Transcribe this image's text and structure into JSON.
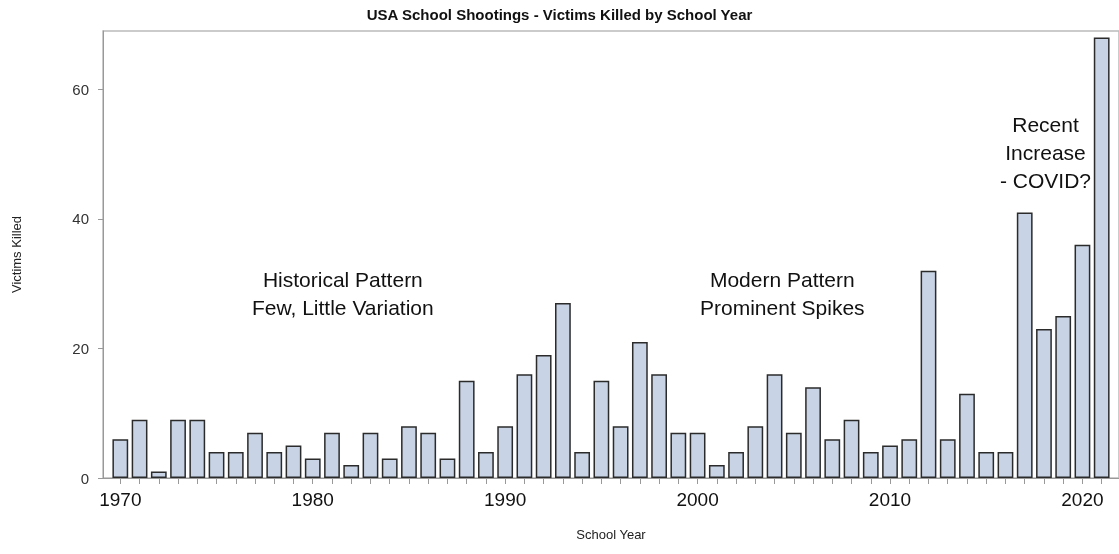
{
  "chart_data": {
    "type": "bar",
    "title": "USA School Shootings - Victims Killed by School Year",
    "xlabel": "School Year",
    "ylabel": "Victims Killed",
    "x": [
      1970,
      1971,
      1972,
      1973,
      1974,
      1975,
      1976,
      1977,
      1978,
      1979,
      1980,
      1981,
      1982,
      1983,
      1984,
      1985,
      1986,
      1987,
      1988,
      1989,
      1990,
      1991,
      1992,
      1993,
      1994,
      1995,
      1996,
      1997,
      1998,
      1999,
      2000,
      2001,
      2002,
      2003,
      2004,
      2005,
      2006,
      2007,
      2008,
      2009,
      2010,
      2011,
      2012,
      2013,
      2014,
      2015,
      2016,
      2017,
      2018,
      2019,
      2020,
      2021
    ],
    "series": [
      {
        "color": "#c8d4e6",
        "values": [
          6,
          9,
          1,
          9,
          9,
          4,
          4,
          7,
          4,
          5,
          3,
          7,
          2,
          7,
          3,
          8,
          7,
          3,
          15,
          4,
          8,
          16,
          19,
          27,
          4,
          15,
          8,
          21,
          16,
          7,
          7,
          2,
          4,
          8,
          16,
          7,
          14,
          6,
          9,
          4,
          5,
          6,
          32,
          6,
          13,
          4,
          4,
          41,
          23,
          25,
          36,
          68
        ]
      }
    ],
    "xlim": [
      1969.1,
      2021.9
    ],
    "ylim": [
      0,
      69
    ],
    "xticks": [
      1970,
      {
        "value": 1971,
        "label": null
      },
      {
        "value": 1972,
        "label": null
      },
      {
        "value": 1973,
        "label": null
      },
      {
        "value": 1974,
        "label": null
      },
      {
        "value": 1975,
        "label": null
      },
      {
        "value": 1976,
        "label": null
      },
      {
        "value": 1977,
        "label": null
      },
      {
        "value": 1978,
        "label": null
      },
      {
        "value": 1979,
        "label": null
      },
      1980,
      {
        "value": 1981,
        "label": null
      },
      {
        "value": 1982,
        "label": null
      },
      {
        "value": 1983,
        "label": null
      },
      {
        "value": 1984,
        "label": null
      },
      {
        "value": 1985,
        "label": null
      },
      {
        "value": 1986,
        "label": null
      },
      {
        "value": 1987,
        "label": null
      },
      {
        "value": 1988,
        "label": null
      },
      {
        "value": 1989,
        "label": null
      },
      1990,
      {
        "value": 1991,
        "label": null
      },
      {
        "value": 1992,
        "label": null
      },
      {
        "value": 1993,
        "label": null
      },
      {
        "value": 1994,
        "label": null
      },
      {
        "value": 1995,
        "label": null
      },
      {
        "value": 1996,
        "label": null
      },
      {
        "value": 1997,
        "label": null
      },
      {
        "value": 1998,
        "label": null
      },
      {
        "value": 1999,
        "label": null
      },
      2000,
      {
        "value": 2001,
        "label": null
      },
      {
        "value": 2002,
        "label": null
      },
      {
        "value": 2003,
        "label": null
      },
      {
        "value": 2004,
        "label": null
      },
      {
        "value": 2005,
        "label": null
      },
      {
        "value": 2006,
        "label": null
      },
      {
        "value": 2007,
        "label": null
      },
      {
        "value": 2008,
        "label": null
      },
      {
        "value": 2009,
        "label": null
      },
      2010,
      {
        "value": 2011,
        "label": null
      },
      {
        "value": 2012,
        "label": null
      },
      {
        "value": 2013,
        "label": null
      },
      {
        "value": 2014,
        "label": null
      },
      {
        "value": 2015,
        "label": null
      },
      {
        "value": 2016,
        "label": null
      },
      {
        "value": 2017,
        "label": null
      },
      {
        "value": 2018,
        "label": null
      },
      {
        "value": 2019,
        "label": null
      },
      2020,
      {
        "value": 2021,
        "label": null
      }
    ],
    "yticks": [
      0,
      20,
      40,
      60
    ],
    "annotations": [
      "Historical Pattern\nFew, Little Variation",
      "Modern Pattern\nProminent Spikes",
      "Recent\nIncrease\n- COVID?"
    ],
    "line_style": "solid"
  }
}
